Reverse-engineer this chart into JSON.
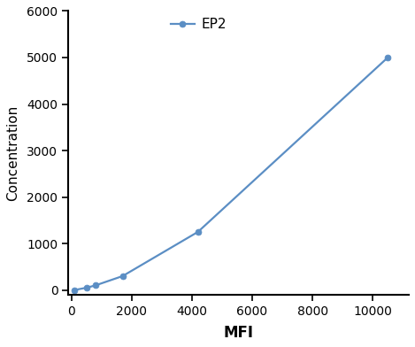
{
  "x": [
    100,
    500,
    800,
    1700,
    4200,
    10500
  ],
  "y": [
    0,
    50,
    100,
    300,
    1250,
    5000
  ],
  "line_color": "#5b8ec4",
  "marker_color": "#5b8ec4",
  "marker_style": "o",
  "marker_size": 5,
  "line_width": 1.6,
  "xlabel": "MFI",
  "ylabel": "Concentration",
  "legend_label": "EP2",
  "xlim": [
    -100,
    11200
  ],
  "ylim": [
    -100,
    6000
  ],
  "xticks": [
    0,
    2000,
    4000,
    6000,
    8000,
    10000
  ],
  "yticks": [
    0,
    1000,
    2000,
    3000,
    4000,
    5000,
    6000
  ],
  "xlabel_fontsize": 12,
  "ylabel_fontsize": 11,
  "tick_fontsize": 10,
  "legend_fontsize": 11,
  "background_color": "#ffffff",
  "spine_color": "#000000"
}
